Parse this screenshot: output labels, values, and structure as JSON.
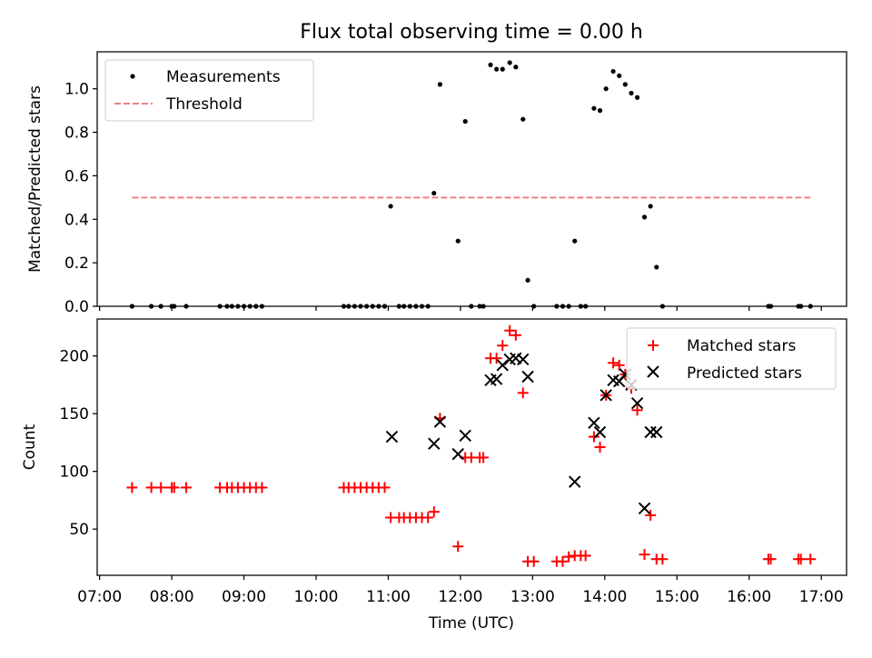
{
  "chart_data": [
    {
      "type": "scatter",
      "title": "Flux total observing time = 0.00 h",
      "xlabel": "",
      "ylabel": "Matched/Predicted stars",
      "xlim": [
        "06:58",
        "17:21"
      ],
      "ylim": [
        0,
        1.17
      ],
      "yticks": [
        "0.0",
        "0.2",
        "0.4",
        "0.6",
        "0.8",
        "1.0"
      ],
      "grid": false,
      "legend": "top-left",
      "series": [
        {
          "name": "Measurements",
          "marker": "dot",
          "color": "#000000",
          "points": [
            {
              "x": "07:27",
              "y": 0
            },
            {
              "x": "07:43",
              "y": 0
            },
            {
              "x": "07:51",
              "y": 0
            },
            {
              "x": "08:00",
              "y": 0
            },
            {
              "x": "08:02",
              "y": 0
            },
            {
              "x": "08:12",
              "y": 0
            },
            {
              "x": "08:40",
              "y": 0
            },
            {
              "x": "08:46",
              "y": 0
            },
            {
              "x": "08:50",
              "y": 0
            },
            {
              "x": "08:55",
              "y": 0
            },
            {
              "x": "09:00",
              "y": 0
            },
            {
              "x": "09:05",
              "y": 0
            },
            {
              "x": "09:10",
              "y": 0
            },
            {
              "x": "09:15",
              "y": 0
            },
            {
              "x": "10:23",
              "y": 0
            },
            {
              "x": "10:27",
              "y": 0
            },
            {
              "x": "10:32",
              "y": 0
            },
            {
              "x": "10:37",
              "y": 0
            },
            {
              "x": "10:42",
              "y": 0
            },
            {
              "x": "10:47",
              "y": 0
            },
            {
              "x": "10:52",
              "y": 0
            },
            {
              "x": "10:57",
              "y": 0
            },
            {
              "x": "11:02",
              "y": 0.46
            },
            {
              "x": "11:09",
              "y": 0
            },
            {
              "x": "11:13",
              "y": 0
            },
            {
              "x": "11:18",
              "y": 0
            },
            {
              "x": "11:23",
              "y": 0
            },
            {
              "x": "11:28",
              "y": 0
            },
            {
              "x": "11:33",
              "y": 0
            },
            {
              "x": "11:38",
              "y": 0.52
            },
            {
              "x": "11:43",
              "y": 1.02
            },
            {
              "x": "11:58",
              "y": 0.3
            },
            {
              "x": "12:04",
              "y": 0.85
            },
            {
              "x": "12:09",
              "y": 0
            },
            {
              "x": "12:16",
              "y": 0
            },
            {
              "x": "12:19",
              "y": 0
            },
            {
              "x": "12:25",
              "y": 1.11
            },
            {
              "x": "12:30",
              "y": 1.09
            },
            {
              "x": "12:35",
              "y": 1.09
            },
            {
              "x": "12:41",
              "y": 1.12
            },
            {
              "x": "12:46",
              "y": 1.1
            },
            {
              "x": "12:52",
              "y": 0.86
            },
            {
              "x": "12:56",
              "y": 0.12
            },
            {
              "x": "13:01",
              "y": 0
            },
            {
              "x": "13:20",
              "y": 0
            },
            {
              "x": "13:25",
              "y": 0
            },
            {
              "x": "13:30",
              "y": 0
            },
            {
              "x": "13:35",
              "y": 0.3
            },
            {
              "x": "13:40",
              "y": 0
            },
            {
              "x": "13:44",
              "y": 0
            },
            {
              "x": "13:51",
              "y": 0.91
            },
            {
              "x": "13:56",
              "y": 0.9
            },
            {
              "x": "14:01",
              "y": 1.0
            },
            {
              "x": "14:07",
              "y": 1.08
            },
            {
              "x": "14:12",
              "y": 1.06
            },
            {
              "x": "14:17",
              "y": 1.02
            },
            {
              "x": "14:22",
              "y": 0.98
            },
            {
              "x": "14:27",
              "y": 0.96
            },
            {
              "x": "14:33",
              "y": 0.41
            },
            {
              "x": "14:38",
              "y": 0.46
            },
            {
              "x": "14:43",
              "y": 0.18
            },
            {
              "x": "14:48",
              "y": 0
            },
            {
              "x": "16:16",
              "y": 0
            },
            {
              "x": "16:18",
              "y": 0
            },
            {
              "x": "16:41",
              "y": 0
            },
            {
              "x": "16:43",
              "y": 0
            },
            {
              "x": "16:51",
              "y": 0
            }
          ]
        },
        {
          "name": "Threshold",
          "marker": "dashed-line",
          "color": "#f08080",
          "points": [
            {
              "x": "07:27",
              "y": 0.5
            },
            {
              "x": "16:51",
              "y": 0.5
            }
          ]
        }
      ]
    },
    {
      "type": "scatter",
      "title": "",
      "xlabel": "Time (UTC)",
      "ylabel": "Count",
      "xlim": [
        "06:58",
        "17:21"
      ],
      "ylim": [
        10,
        232
      ],
      "xticks": [
        "07:00",
        "08:00",
        "09:00",
        "10:00",
        "11:00",
        "12:00",
        "13:00",
        "14:00",
        "15:00",
        "16:00",
        "17:00"
      ],
      "yticks": [
        "50",
        "100",
        "150",
        "200"
      ],
      "grid": false,
      "legend": "top-right",
      "series": [
        {
          "name": "Matched stars",
          "marker": "plus",
          "color": "#ff0000",
          "points": [
            {
              "x": "07:27",
              "y": 86
            },
            {
              "x": "07:43",
              "y": 86
            },
            {
              "x": "07:51",
              "y": 86
            },
            {
              "x": "08:00",
              "y": 86
            },
            {
              "x": "08:02",
              "y": 86
            },
            {
              "x": "08:12",
              "y": 86
            },
            {
              "x": "08:40",
              "y": 86
            },
            {
              "x": "08:46",
              "y": 86
            },
            {
              "x": "08:50",
              "y": 86
            },
            {
              "x": "08:55",
              "y": 86
            },
            {
              "x": "09:00",
              "y": 86
            },
            {
              "x": "09:05",
              "y": 86
            },
            {
              "x": "09:10",
              "y": 86
            },
            {
              "x": "09:15",
              "y": 86
            },
            {
              "x": "10:23",
              "y": 86
            },
            {
              "x": "10:27",
              "y": 86
            },
            {
              "x": "10:32",
              "y": 86
            },
            {
              "x": "10:37",
              "y": 86
            },
            {
              "x": "10:42",
              "y": 86
            },
            {
              "x": "10:47",
              "y": 86
            },
            {
              "x": "10:52",
              "y": 86
            },
            {
              "x": "10:57",
              "y": 86
            },
            {
              "x": "11:02",
              "y": 60
            },
            {
              "x": "11:09",
              "y": 60
            },
            {
              "x": "11:13",
              "y": 60
            },
            {
              "x": "11:18",
              "y": 60
            },
            {
              "x": "11:23",
              "y": 60
            },
            {
              "x": "11:28",
              "y": 60
            },
            {
              "x": "11:33",
              "y": 60
            },
            {
              "x": "11:38",
              "y": 65
            },
            {
              "x": "11:43",
              "y": 146
            },
            {
              "x": "11:58",
              "y": 35
            },
            {
              "x": "12:04",
              "y": 112
            },
            {
              "x": "12:09",
              "y": 112
            },
            {
              "x": "12:16",
              "y": 112
            },
            {
              "x": "12:19",
              "y": 112
            },
            {
              "x": "12:25",
              "y": 198
            },
            {
              "x": "12:30",
              "y": 198
            },
            {
              "x": "12:35",
              "y": 209
            },
            {
              "x": "12:41",
              "y": 222
            },
            {
              "x": "12:46",
              "y": 218
            },
            {
              "x": "12:52",
              "y": 168
            },
            {
              "x": "12:56",
              "y": 22
            },
            {
              "x": "13:01",
              "y": 22
            },
            {
              "x": "13:20",
              "y": 22
            },
            {
              "x": "13:25",
              "y": 22
            },
            {
              "x": "13:30",
              "y": 26
            },
            {
              "x": "13:35",
              "y": 27
            },
            {
              "x": "13:40",
              "y": 27
            },
            {
              "x": "13:44",
              "y": 27
            },
            {
              "x": "13:51",
              "y": 130
            },
            {
              "x": "13:56",
              "y": 121
            },
            {
              "x": "14:01",
              "y": 166
            },
            {
              "x": "14:07",
              "y": 194
            },
            {
              "x": "14:12",
              "y": 192
            },
            {
              "x": "14:17",
              "y": 184
            },
            {
              "x": "14:22",
              "y": 172
            },
            {
              "x": "14:27",
              "y": 153
            },
            {
              "x": "14:33",
              "y": 28
            },
            {
              "x": "14:38",
              "y": 62
            },
            {
              "x": "14:43",
              "y": 24
            },
            {
              "x": "14:48",
              "y": 24
            },
            {
              "x": "16:16",
              "y": 24
            },
            {
              "x": "16:18",
              "y": 24
            },
            {
              "x": "16:41",
              "y": 24
            },
            {
              "x": "16:43",
              "y": 24
            },
            {
              "x": "16:51",
              "y": 24
            }
          ]
        },
        {
          "name": "Predicted stars",
          "marker": "x",
          "color": "#000000",
          "points": [
            {
              "x": "11:03",
              "y": 130
            },
            {
              "x": "11:38",
              "y": 124
            },
            {
              "x": "11:43",
              "y": 143
            },
            {
              "x": "11:58",
              "y": 115
            },
            {
              "x": "12:04",
              "y": 131
            },
            {
              "x": "12:25",
              "y": 179
            },
            {
              "x": "12:30",
              "y": 180
            },
            {
              "x": "12:35",
              "y": 192
            },
            {
              "x": "12:41",
              "y": 197
            },
            {
              "x": "12:46",
              "y": 198
            },
            {
              "x": "12:52",
              "y": 197
            },
            {
              "x": "12:56",
              "y": 182
            },
            {
              "x": "13:35",
              "y": 91
            },
            {
              "x": "13:51",
              "y": 142
            },
            {
              "x": "13:56",
              "y": 134
            },
            {
              "x": "14:01",
              "y": 166
            },
            {
              "x": "14:07",
              "y": 179
            },
            {
              "x": "14:12",
              "y": 178
            },
            {
              "x": "14:17",
              "y": 184
            },
            {
              "x": "14:22",
              "y": 175
            },
            {
              "x": "14:27",
              "y": 159
            },
            {
              "x": "14:33",
              "y": 68
            },
            {
              "x": "14:38",
              "y": 134
            },
            {
              "x": "14:43",
              "y": 134
            }
          ]
        }
      ]
    }
  ]
}
